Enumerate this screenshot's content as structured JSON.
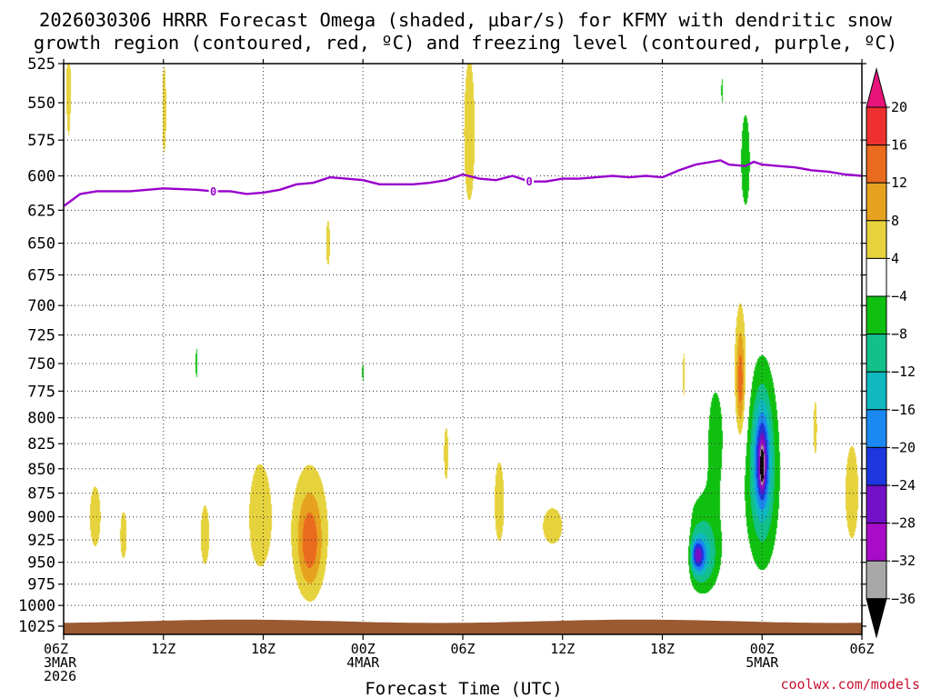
{
  "chart_data": {
    "type": "heatmap",
    "title_line1": "2026030306 HRRR Forecast Omega (shaded, µbar/s) for KFMY with dendritic snow",
    "title_line2": "growth region (contoured, red, ºC) and freezing level (contoured, purple, ºC)",
    "xlabel": "Forecast Time (UTC)",
    "credit": "coolwx.com/models",
    "x_range_hours": [
      0,
      48
    ],
    "x_ticks": [
      {
        "h": 0,
        "l1": "06Z",
        "l2": "3MAR",
        "l3": "2026"
      },
      {
        "h": 6,
        "l1": "12Z",
        "l2": "",
        "l3": ""
      },
      {
        "h": 12,
        "l1": "18Z",
        "l2": "",
        "l3": ""
      },
      {
        "h": 18,
        "l1": "00Z",
        "l2": "4MAR",
        "l3": ""
      },
      {
        "h": 24,
        "l1": "06Z",
        "l2": "",
        "l3": ""
      },
      {
        "h": 30,
        "l1": "12Z",
        "l2": "",
        "l3": ""
      },
      {
        "h": 36,
        "l1": "18Z",
        "l2": "",
        "l3": ""
      },
      {
        "h": 42,
        "l1": "00Z",
        "l2": "5MAR",
        "l3": ""
      },
      {
        "h": 48,
        "l1": "06Z",
        "l2": "",
        "l3": ""
      }
    ],
    "pressure_levels_mb": [
      525,
      550,
      575,
      600,
      625,
      650,
      675,
      700,
      725,
      750,
      775,
      800,
      825,
      850,
      875,
      900,
      925,
      950,
      975,
      1000,
      1025
    ],
    "p_range_mb": [
      525,
      1035
    ],
    "colorbar": {
      "labels": [
        20,
        16,
        12,
        8,
        4,
        -4,
        -8,
        -12,
        -16,
        -20,
        -24,
        -28,
        -32,
        -36
      ],
      "bins": [
        {
          "lo": 20,
          "hi": 24,
          "color": "#e8147a"
        },
        {
          "lo": 16,
          "hi": 20,
          "color": "#ee3030"
        },
        {
          "lo": 12,
          "hi": 16,
          "color": "#ea6a1e"
        },
        {
          "lo": 8,
          "hi": 12,
          "color": "#e6a21e"
        },
        {
          "lo": 4,
          "hi": 8,
          "color": "#e6d23c"
        },
        {
          "lo": -4,
          "hi": 4,
          "color": "#ffffff"
        },
        {
          "lo": -8,
          "hi": -4,
          "color": "#10c010"
        },
        {
          "lo": -12,
          "hi": -8,
          "color": "#12c08a"
        },
        {
          "lo": -16,
          "hi": -12,
          "color": "#10b8c0"
        },
        {
          "lo": -20,
          "hi": -16,
          "color": "#1a88f0"
        },
        {
          "lo": -24,
          "hi": -20,
          "color": "#1c36e0"
        },
        {
          "lo": -28,
          "hi": -24,
          "color": "#7210c8"
        },
        {
          "lo": -32,
          "hi": -28,
          "color": "#a80cc8"
        },
        {
          "lo": -36,
          "hi": -32,
          "color": "#a8a8a8"
        },
        {
          "lo": -40,
          "hi": -36,
          "color": "#000000"
        }
      ]
    },
    "freezing_level": {
      "label": "0",
      "color": "#9900cc",
      "label_hours": [
        9,
        28
      ],
      "points": [
        [
          0,
          622
        ],
        [
          1,
          613
        ],
        [
          2,
          611
        ],
        [
          4,
          611
        ],
        [
          6,
          609
        ],
        [
          8,
          610
        ],
        [
          9,
          611
        ],
        [
          10,
          611
        ],
        [
          11,
          613
        ],
        [
          12,
          612
        ],
        [
          13,
          610
        ],
        [
          14,
          606
        ],
        [
          15,
          605
        ],
        [
          16,
          601
        ],
        [
          17,
          602
        ],
        [
          18,
          603
        ],
        [
          19,
          606
        ],
        [
          20,
          606
        ],
        [
          21,
          606
        ],
        [
          22,
          605
        ],
        [
          23,
          603
        ],
        [
          24,
          599
        ],
        [
          25,
          602
        ],
        [
          26,
          603
        ],
        [
          27,
          600
        ],
        [
          28,
          604
        ],
        [
          29,
          604
        ],
        [
          30,
          602
        ],
        [
          31,
          602
        ],
        [
          32,
          601
        ],
        [
          33,
          600
        ],
        [
          34,
          601
        ],
        [
          35,
          600
        ],
        [
          36,
          601
        ],
        [
          37,
          596
        ],
        [
          38,
          592
        ],
        [
          39,
          590
        ],
        [
          39.5,
          589
        ],
        [
          40,
          592
        ],
        [
          41,
          593
        ],
        [
          41.5,
          590
        ],
        [
          42,
          592
        ],
        [
          43,
          593
        ],
        [
          44,
          594
        ],
        [
          45,
          596
        ],
        [
          46,
          597
        ],
        [
          47,
          599
        ],
        [
          48,
          600
        ]
      ]
    },
    "ground_surface": {
      "color": "#9a5a32",
      "top_mb_min": 1017,
      "top_mb_max": 1021
    },
    "blobs": [
      {
        "h": 0.3,
        "p": 543,
        "ph": 0.2,
        "pp": 45,
        "v": 6
      },
      {
        "h": 6.05,
        "p": 555,
        "ph": 0.18,
        "pp": 45,
        "v": 6
      },
      {
        "h": 15.9,
        "p": 650,
        "ph": 0.18,
        "pp": 27,
        "v": 6
      },
      {
        "h": 24.4,
        "p": 570,
        "ph": 0.5,
        "pp": 75,
        "v": 6
      },
      {
        "h": 1.9,
        "p": 900,
        "ph": 0.5,
        "pp": 50,
        "v": 6
      },
      {
        "h": 3.6,
        "p": 920,
        "ph": 0.3,
        "pp": 40,
        "v": 6
      },
      {
        "h": 8.5,
        "p": 920,
        "ph": 0.4,
        "pp": 50,
        "v": 6
      },
      {
        "h": 11.8,
        "p": 900,
        "ph": 1.0,
        "pp": 85,
        "v": 6
      },
      {
        "h": 14.8,
        "p": 910,
        "ph": 1.4,
        "pp": 85,
        "v": 6
      },
      {
        "h": 14.8,
        "p": 930,
        "ph": 0.7,
        "pp": 50,
        "v": 10
      },
      {
        "h": 23.0,
        "p": 835,
        "ph": 0.2,
        "pp": 40,
        "v": 6
      },
      {
        "h": 26.2,
        "p": 885,
        "ph": 0.45,
        "pp": 65,
        "v": 6
      },
      {
        "h": 29.4,
        "p": 910,
        "ph": 0.9,
        "pp": 30,
        "v": 6
      },
      {
        "h": 37.4,
        "p": 935,
        "ph": 0.3,
        "pp": 45,
        "v": 6
      },
      {
        "h": 37.3,
        "p": 760,
        "ph": 0.1,
        "pp": 30,
        "v": 6
      },
      {
        "h": 45.2,
        "p": 810,
        "ph": 0.15,
        "pp": 40,
        "v": 6
      },
      {
        "h": 47.4,
        "p": 875,
        "ph": 0.6,
        "pp": 75,
        "v": 6
      },
      {
        "h": 40.7,
        "p": 750,
        "ph": 0.45,
        "pp": 70,
        "v": 6
      },
      {
        "h": 40.7,
        "p": 770,
        "ph": 0.25,
        "pp": 45,
        "v": 10
      },
      {
        "h": 8.0,
        "p": 750,
        "ph": 0.1,
        "pp": 20,
        "v": -6
      },
      {
        "h": 18.0,
        "p": 758,
        "ph": 0.08,
        "pp": 12,
        "v": -6
      },
      {
        "h": 13.0,
        "p": 928,
        "ph": 0.16,
        "pp": 48,
        "v": -6
      },
      {
        "h": 39.6,
        "p": 542,
        "ph": 0.08,
        "pp": 12,
        "v": -6
      },
      {
        "h": 41.0,
        "p": 590,
        "ph": 0.4,
        "pp": 50,
        "v": -6
      },
      {
        "h": 38.5,
        "p": 920,
        "ph": 1.3,
        "pp": 62,
        "v": -6
      },
      {
        "h": 39.2,
        "p": 815,
        "ph": 0.6,
        "pp": 60,
        "v": -6
      },
      {
        "h": 38.4,
        "p": 945,
        "ph": 0.8,
        "pp": 33,
        "v": -10
      },
      {
        "h": 38.1,
        "p": 942,
        "ph": 0.38,
        "pp": 17,
        "v": -14
      },
      {
        "h": 42.0,
        "p": 860,
        "ph": 1.2,
        "pp": 110,
        "v": -6
      },
      {
        "h": 42.0,
        "p": 845,
        "ph": 0.75,
        "pp": 80,
        "v": -10
      },
      {
        "h": 42.0,
        "p": 840,
        "ph": 0.4,
        "pp": 45,
        "v": -14
      },
      {
        "h": 42.0,
        "p": 848,
        "ph": 0.12,
        "pp": 18,
        "v": -20
      }
    ]
  }
}
